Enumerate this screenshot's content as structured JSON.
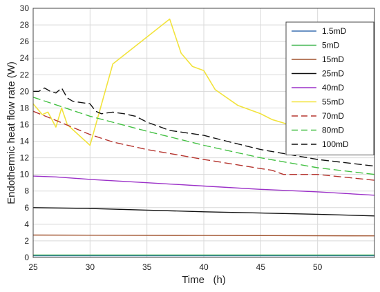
{
  "chart_data": {
    "type": "line",
    "title": "",
    "xlabel": "Time   (h)",
    "ylabel": "Endothermic heat flow rate (W)",
    "xlim": [
      25,
      55
    ],
    "ylim": [
      0,
      30
    ],
    "xticks": [
      25,
      30,
      35,
      40,
      45,
      50
    ],
    "yticks": [
      0,
      2,
      4,
      6,
      8,
      10,
      12,
      14,
      16,
      18,
      20,
      22,
      24,
      26,
      28,
      30
    ],
    "grid": true,
    "legend_position": "top-right",
    "series": [
      {
        "name": "1.5mD",
        "color": "#3a6fb0",
        "dash": "solid",
        "x": [
          25,
          55
        ],
        "y": [
          0.2,
          0.2
        ]
      },
      {
        "name": "5mD",
        "color": "#3cb44b",
        "dash": "solid",
        "x": [
          25,
          55
        ],
        "y": [
          0.3,
          0.3
        ]
      },
      {
        "name": "15mD",
        "color": "#a0522d",
        "dash": "solid",
        "x": [
          25,
          40,
          55
        ],
        "y": [
          2.7,
          2.65,
          2.6
        ]
      },
      {
        "name": "25mD",
        "color": "#111111",
        "dash": "solid",
        "x": [
          25,
          30,
          35,
          40,
          45,
          50,
          55
        ],
        "y": [
          6.0,
          5.9,
          5.7,
          5.5,
          5.35,
          5.2,
          5.0
        ]
      },
      {
        "name": "40mD",
        "color": "#9b30c8",
        "dash": "solid",
        "x": [
          25,
          27,
          30,
          35,
          40,
          45,
          50,
          55
        ],
        "y": [
          9.8,
          9.7,
          9.4,
          9.0,
          8.6,
          8.2,
          7.9,
          7.5
        ]
      },
      {
        "name": "55mD",
        "color": "#f2e33c",
        "dash": "solid",
        "x": [
          25,
          25.8,
          26.3,
          27,
          27.5,
          28,
          30,
          32,
          37,
          38,
          39,
          40,
          41,
          43,
          45,
          46,
          47,
          50,
          55
        ],
        "y": [
          18.5,
          17.2,
          17.5,
          15.7,
          18.0,
          16.0,
          13.5,
          23.3,
          28.7,
          24.6,
          23.0,
          22.5,
          20.2,
          18.3,
          17.3,
          16.6,
          16.2,
          14.8,
          12.7
        ]
      },
      {
        "name": "70mD",
        "color": "#b5352f",
        "dash": "dash",
        "x": [
          25,
          27,
          30,
          32,
          35,
          40,
          45,
          46,
          47,
          50,
          55
        ],
        "y": [
          17.6,
          16.5,
          14.8,
          13.9,
          13.0,
          11.8,
          10.7,
          10.5,
          10.0,
          10.0,
          9.3
        ]
      },
      {
        "name": "80mD",
        "color": "#43c043",
        "dash": "dash",
        "x": [
          25,
          30,
          35,
          40,
          45,
          50,
          55
        ],
        "y": [
          19.3,
          17.0,
          15.2,
          13.5,
          12.0,
          10.8,
          10.0
        ]
      },
      {
        "name": "100mD",
        "color": "#111111",
        "dash": "dash",
        "x": [
          25,
          25.5,
          26,
          26.5,
          27,
          27.5,
          28,
          28.5,
          30,
          30.5,
          31,
          32,
          33,
          34,
          35,
          37,
          40,
          42,
          45,
          50,
          55
        ],
        "y": [
          20.0,
          20.0,
          20.4,
          20.0,
          19.8,
          20.4,
          19.2,
          18.8,
          18.5,
          17.6,
          17.3,
          17.5,
          17.3,
          17.0,
          16.3,
          15.3,
          14.7,
          14.0,
          13.0,
          11.8,
          11.0
        ]
      }
    ]
  }
}
